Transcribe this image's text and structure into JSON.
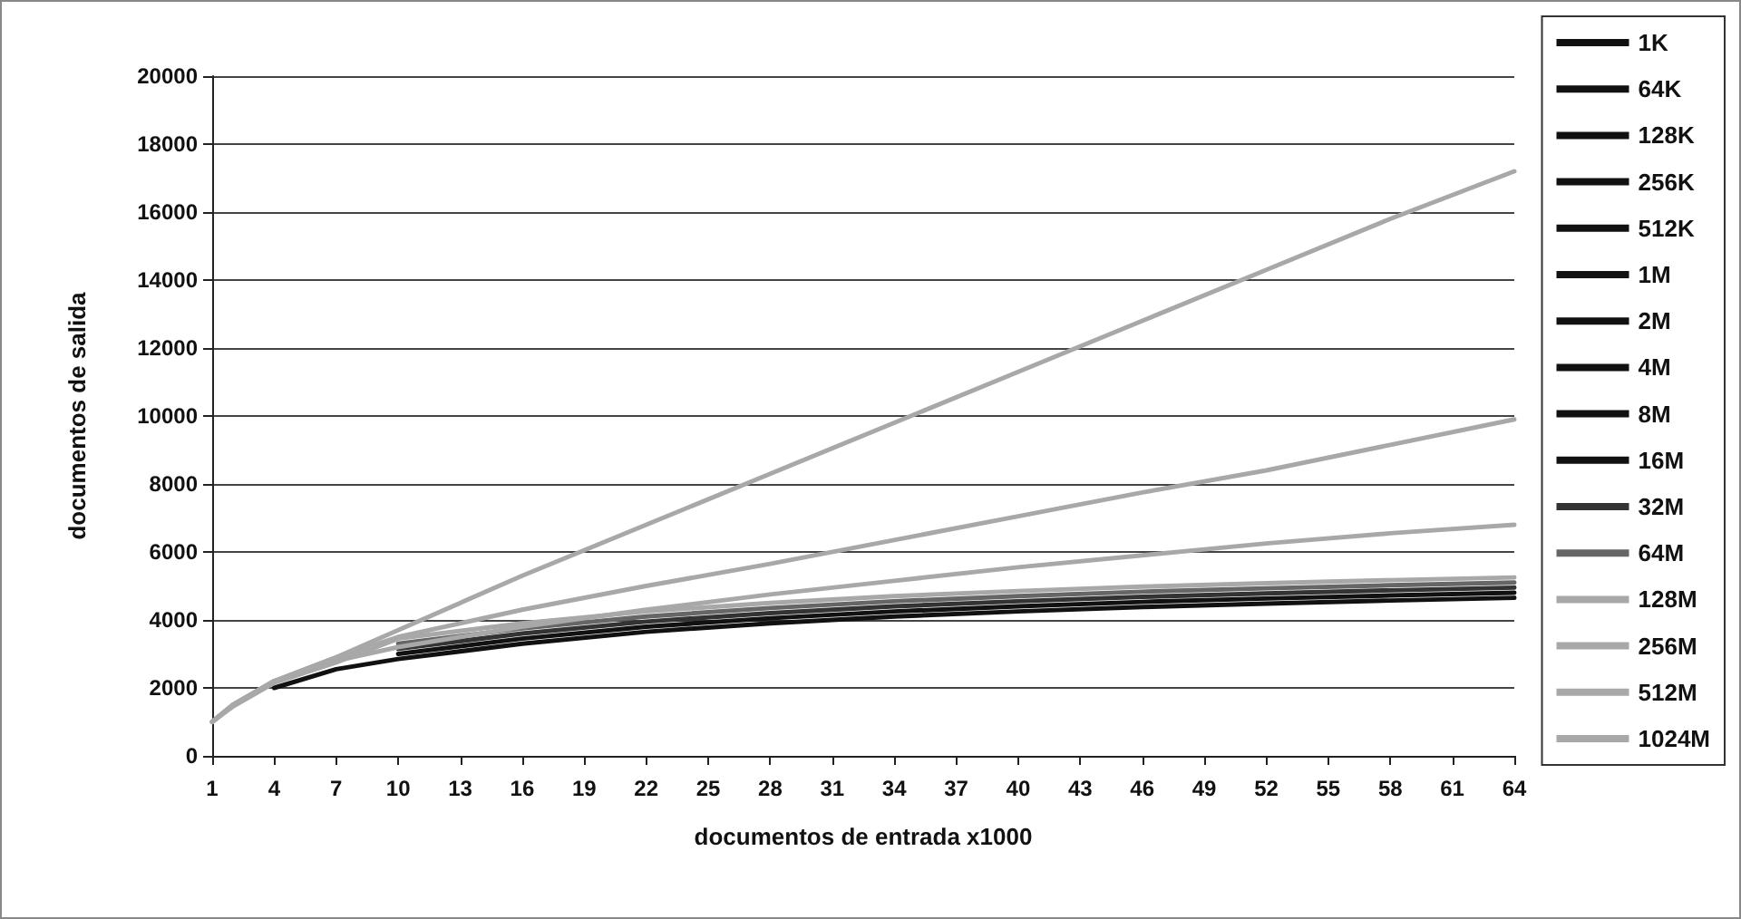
{
  "chart_data": {
    "type": "line",
    "xlabel": "documentos de entrada x1000",
    "ylabel": "documentos de salida",
    "x": [
      1,
      2,
      4,
      7,
      10,
      16,
      22,
      28,
      34,
      40,
      46,
      52,
      58,
      64
    ],
    "xlim": [
      1,
      64
    ],
    "xticks": [
      1,
      4,
      7,
      10,
      13,
      16,
      19,
      22,
      25,
      28,
      31,
      34,
      37,
      40,
      43,
      46,
      49,
      52,
      55,
      58,
      61,
      64
    ],
    "ylim": [
      0,
      20000
    ],
    "yticks": [
      0,
      2000,
      4000,
      6000,
      8000,
      10000,
      12000,
      14000,
      16000,
      18000,
      20000
    ],
    "grid": "y",
    "legend": "right",
    "marker": "none",
    "line_style": "solid",
    "series": [
      {
        "name": "1K",
        "color": "#111111",
        "values": [
          null,
          null,
          2000,
          2550,
          2850,
          3300,
          3650,
          3900,
          4100,
          4250,
          4380,
          4480,
          4570,
          4650
        ]
      },
      {
        "name": "64K",
        "color": "#111111",
        "values": [
          null,
          null,
          null,
          null,
          null,
          null,
          null,
          null,
          null,
          null,
          null,
          null,
          null,
          null
        ]
      },
      {
        "name": "128K",
        "color": "#111111",
        "values": [
          null,
          null,
          null,
          null,
          null,
          null,
          null,
          null,
          null,
          null,
          null,
          null,
          null,
          null
        ]
      },
      {
        "name": "256K",
        "color": "#111111",
        "values": [
          null,
          null,
          null,
          null,
          null,
          null,
          null,
          null,
          null,
          null,
          null,
          null,
          null,
          null
        ]
      },
      {
        "name": "512K",
        "color": "#111111",
        "values": [
          null,
          null,
          null,
          null,
          null,
          null,
          null,
          null,
          null,
          null,
          null,
          null,
          null,
          null
        ]
      },
      {
        "name": "1M",
        "color": "#111111",
        "values": [
          null,
          null,
          null,
          null,
          null,
          null,
          null,
          null,
          null,
          null,
          null,
          null,
          null,
          null
        ]
      },
      {
        "name": "2M",
        "color": "#111111",
        "values": [
          null,
          null,
          null,
          null,
          null,
          null,
          null,
          null,
          null,
          null,
          null,
          null,
          null,
          null
        ]
      },
      {
        "name": "4M",
        "color": "#111111",
        "values": [
          null,
          null,
          null,
          null,
          null,
          null,
          null,
          null,
          null,
          null,
          null,
          null,
          null,
          null
        ]
      },
      {
        "name": "8M",
        "color": "#111111",
        "values": [
          null,
          null,
          null,
          null,
          null,
          null,
          null,
          null,
          null,
          null,
          null,
          null,
          null,
          null
        ]
      },
      {
        "name": "16M",
        "color": "#111111",
        "values": [
          null,
          null,
          null,
          null,
          3000,
          3450,
          3800,
          4050,
          4250,
          4400,
          4530,
          4630,
          4720,
          4800
        ]
      },
      {
        "name": "32M",
        "color": "#333333",
        "values": [
          null,
          null,
          null,
          null,
          3150,
          3600,
          3950,
          4200,
          4400,
          4550,
          4680,
          4780,
          4870,
          4950
        ]
      },
      {
        "name": "64M",
        "color": "#666666",
        "values": [
          null,
          null,
          null,
          null,
          3300,
          3750,
          4100,
          4350,
          4550,
          4700,
          4830,
          4930,
          5020,
          5100
        ]
      },
      {
        "name": "128M",
        "color": "#a8a8a8",
        "values": [
          1000,
          1450,
          2150,
          2750,
          3450,
          3900,
          4250,
          4500,
          4700,
          4850,
          4980,
          5080,
          5170,
          5250
        ]
      },
      {
        "name": "256M",
        "color": "#a8a8a8",
        "values": [
          1000,
          1500,
          2200,
          2800,
          3200,
          3800,
          4300,
          4750,
          5150,
          5550,
          5900,
          6250,
          6550,
          6800
        ]
      },
      {
        "name": "512M",
        "color": "#a8a8a8",
        "values": [
          1000,
          1500,
          2200,
          2900,
          3500,
          4300,
          5000,
          5650,
          6350,
          7050,
          7750,
          8400,
          9150,
          9900
        ]
      },
      {
        "name": "1024M",
        "color": "#a8a8a8",
        "values": [
          1000,
          1500,
          2200,
          2900,
          3700,
          5300,
          6800,
          8300,
          9800,
          11300,
          12800,
          14300,
          15800,
          17200
        ]
      }
    ]
  }
}
